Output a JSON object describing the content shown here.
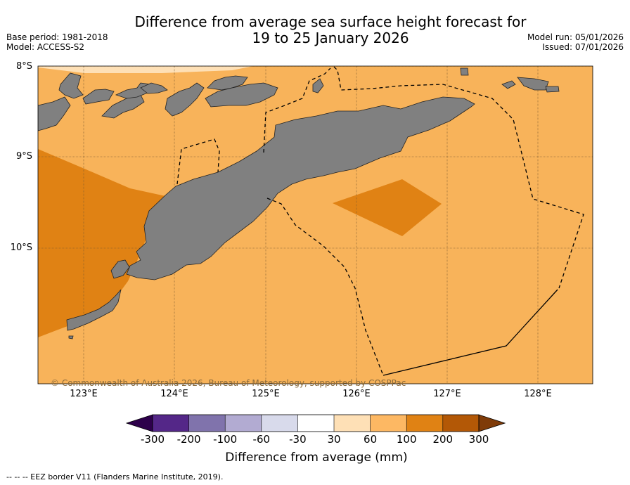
{
  "title": {
    "line1": "Difference from average sea surface height forecast for",
    "line2": "19 to 25 January 2026"
  },
  "meta": {
    "base_period": "Base period: 1981-2018",
    "model": "Model: ACCESS-S2",
    "model_run": "Model run: 05/01/2026",
    "issued": "Issued: 07/01/2026"
  },
  "map": {
    "lat_labels": [
      "8°S",
      "9°S",
      "10°S"
    ],
    "lon_labels": [
      "123°E",
      "124°E",
      "125°E",
      "126°E",
      "127°E",
      "128°E"
    ],
    "copyright": "© Commonwealth of Australia 2026, Bureau of Meteorology, supported by COSPPac",
    "colors": {
      "land": "#808080",
      "fill_60_100": "#f8b35a",
      "fill_100_200": "#e08214",
      "fill_30_60": "#fee0b6"
    }
  },
  "colorbar": {
    "label": "Difference from average (mm)",
    "ticks": [
      "-300",
      "-200",
      "-100",
      "-60",
      "-30",
      "30",
      "60",
      "100",
      "200",
      "300"
    ],
    "colors": [
      "#2d004b",
      "#542788",
      "#8073ac",
      "#b2abd2",
      "#d8daeb",
      "#ffffff",
      "#fee0b6",
      "#fdb863",
      "#e08214",
      "#b35806",
      "#7f3b08"
    ]
  },
  "footer": "--  --  -- EEZ border V11 (Flanders Marine Institute, 2019)."
}
